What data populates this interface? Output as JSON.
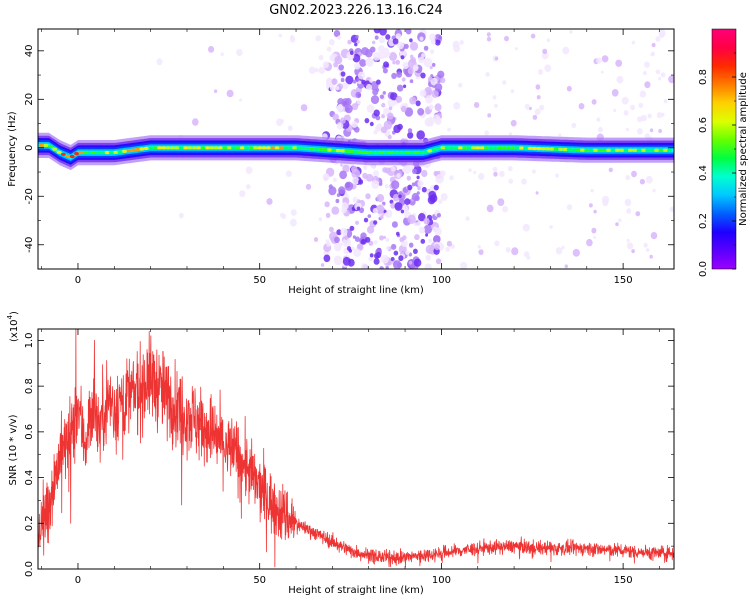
{
  "title": "GN02.2023.226.13.16.C24",
  "colors": {
    "colormap": [
      "#ffffff",
      "#f3e7ff",
      "#d7b5fb",
      "#a878f5",
      "#6b2df0",
      "#2200ff",
      "#0044ff",
      "#00bfff",
      "#00ffff",
      "#00ff66",
      "#33ff00",
      "#ccff00",
      "#ffee00",
      "#ff9900",
      "#ff2200",
      "#ff0066"
    ],
    "snr_line": "#ee3333"
  },
  "chart_data": [
    {
      "type": "heatmap",
      "title": "GN02.2023.226.13.16.C24",
      "xlabel": "Height of straight line (km)",
      "ylabel": "Frequency (Hz)",
      "xlim": [
        -11,
        164
      ],
      "ylim": [
        -50,
        49
      ],
      "xticks": [
        0,
        50,
        100,
        150
      ],
      "yticks": [
        -40,
        -20,
        0,
        20,
        40
      ],
      "colorbar": {
        "label": "Normalized spectral amplitude",
        "range": [
          0,
          1
        ],
        "ticks": [
          0.0,
          0.2,
          0.4,
          0.6,
          0.8
        ]
      },
      "ridge_frequency_hz": {
        "x": [
          -11,
          -8,
          -5,
          -2,
          0,
          5,
          10,
          20,
          40,
          60,
          80,
          90,
          95,
          100,
          120,
          140,
          160,
          164
        ],
        "y": [
          1,
          1,
          -2,
          -4,
          -2,
          -2,
          -2,
          0,
          0,
          0,
          -2,
          -2,
          -2,
          0,
          0,
          -1,
          -1,
          -1
        ]
      },
      "scatter_band_km": [
        68,
        100
      ]
    },
    {
      "type": "line",
      "xlabel": "Height of straight line (km)",
      "ylabel": "SNR (10 * v/v)",
      "yscale_label": "(x10",
      "yscale_exp": "4",
      "yscale_close": ")",
      "xlim": [
        -11,
        164
      ],
      "ylim": [
        0,
        1.05
      ],
      "xticks": [
        0,
        50,
        100,
        150
      ],
      "yticks": [
        0.0,
        0.2,
        0.4,
        0.6,
        0.8,
        1.0
      ],
      "series": [
        {
          "values_x": [
            -11,
            -9,
            -7,
            -5,
            -3,
            -1,
            0,
            2,
            4,
            6,
            8,
            10,
            12,
            15,
            18,
            20,
            22,
            25,
            30,
            35,
            40,
            45,
            50,
            55,
            60,
            65,
            70,
            75,
            80,
            85,
            90,
            95,
            100,
            110,
            120,
            130,
            140,
            150,
            160,
            164
          ],
          "values_y": [
            0.15,
            0.25,
            0.35,
            0.5,
            0.55,
            0.62,
            0.7,
            0.55,
            0.72,
            0.62,
            0.75,
            0.7,
            0.74,
            0.76,
            0.8,
            0.83,
            0.8,
            0.74,
            0.68,
            0.62,
            0.55,
            0.48,
            0.35,
            0.26,
            0.2,
            0.16,
            0.12,
            0.08,
            0.06,
            0.05,
            0.05,
            0.06,
            0.07,
            0.09,
            0.1,
            0.09,
            0.09,
            0.08,
            0.07,
            0.07
          ],
          "spikes": [
            {
              "x": -0.6,
              "y": 1.05
            },
            {
              "x": 4.5,
              "y": 1.0
            },
            {
              "x": 19,
              "y": 0.96
            },
            {
              "x": 28.5,
              "y": 0.28
            },
            {
              "x": -2,
              "y": 0.2
            }
          ]
        }
      ]
    }
  ]
}
